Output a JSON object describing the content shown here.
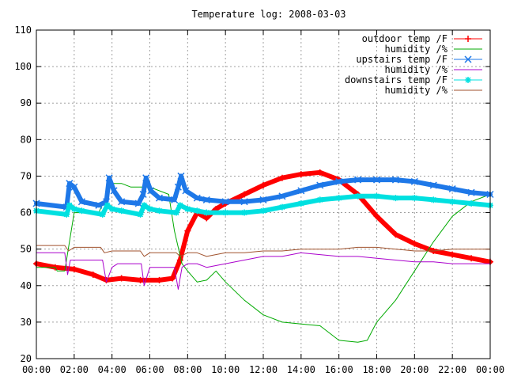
{
  "chart_data": {
    "type": "line",
    "title": "Temperature log: 2008-03-03",
    "xlabel": "",
    "ylabel": "",
    "x_ticks": [
      "00:00",
      "02:00",
      "04:00",
      "06:00",
      "08:00",
      "10:00",
      "12:00",
      "14:00",
      "16:00",
      "18:00",
      "20:00",
      "22:00",
      "00:00"
    ],
    "xlim": [
      0,
      24
    ],
    "ylim": [
      20,
      110
    ],
    "y_ticks": [
      20,
      30,
      40,
      50,
      60,
      70,
      80,
      90,
      100,
      110
    ],
    "grid": true,
    "legend_position": "top-right",
    "series": [
      {
        "name": "outdoor temp /F",
        "color": "#ff0000",
        "marker": "plus",
        "x": [
          0,
          1,
          2,
          3,
          3.7,
          4.5,
          5.5,
          6.5,
          7.2,
          7.6,
          8,
          8.5,
          9,
          9.5,
          10,
          11,
          12,
          13,
          14,
          15,
          16,
          17,
          18,
          19,
          20,
          21,
          22,
          23,
          24
        ],
        "values": [
          46,
          45,
          44.5,
          43,
          41.5,
          42,
          41.5,
          41.5,
          42,
          47,
          55,
          60,
          58.5,
          61,
          62.5,
          65,
          67.5,
          69.5,
          70.5,
          71,
          69,
          65,
          59,
          54,
          51.5,
          49.5,
          48.5,
          47.5,
          46.5
        ]
      },
      {
        "name": "humidity /%",
        "color": "#00aa00",
        "marker": "none",
        "x": [
          0,
          1,
          1.1,
          1.5,
          2,
          3.3,
          4,
          4.5,
          5,
          6,
          7,
          7.3,
          7.7,
          8,
          8.5,
          9,
          9.5,
          10,
          11,
          12,
          13,
          14,
          15,
          16,
          17,
          17.5,
          18,
          19,
          20,
          21,
          22,
          23,
          24
        ],
        "values": [
          45,
          45,
          44,
          44,
          60,
          60,
          68,
          68,
          67,
          67,
          65,
          55,
          46,
          44,
          41,
          41.5,
          44,
          41,
          36,
          32,
          30,
          29.5,
          29,
          25,
          24.5,
          25,
          30,
          36,
          44,
          52,
          59,
          63,
          65
        ]
      },
      {
        "name": "upstairs temp /F",
        "color": "#1e78e8",
        "marker": "x",
        "x": [
          0,
          1.6,
          1.75,
          2,
          2.4,
          3.3,
          3.7,
          3.85,
          4.1,
          4.5,
          5.4,
          5.65,
          5.8,
          6.05,
          6.5,
          7.3,
          7.5,
          7.65,
          7.9,
          8.5,
          9,
          10,
          11,
          12,
          13,
          14,
          15,
          16,
          17,
          18,
          19,
          20,
          21,
          22,
          23,
          24
        ],
        "values": [
          62.5,
          61.5,
          68,
          67,
          63,
          62,
          63,
          69.5,
          66,
          63,
          62.5,
          65,
          69.5,
          66,
          64,
          63.5,
          67,
          70,
          66,
          64,
          63.5,
          63,
          63,
          63.5,
          64.5,
          66,
          67.5,
          68.5,
          69,
          69,
          69,
          68.5,
          67.5,
          66.5,
          65.5,
          65
        ]
      },
      {
        "name": "humidity /%",
        "color": "#aa00cc",
        "marker": "none",
        "x": [
          0,
          1.5,
          1.65,
          1.8,
          2,
          3.5,
          3.7,
          4,
          4.3,
          5,
          5.55,
          5.7,
          6,
          6.3,
          7.3,
          7.5,
          7.7,
          8,
          8.5,
          9,
          10,
          11,
          12,
          13,
          14,
          15,
          16,
          17,
          18,
          19,
          20,
          21,
          22,
          23,
          24
        ],
        "values": [
          49,
          49,
          43,
          47,
          47,
          47,
          41,
          45,
          46,
          46,
          46,
          40,
          45,
          45,
          45,
          39,
          45,
          46,
          46,
          45,
          46,
          47,
          48,
          48,
          49,
          48.5,
          48,
          48,
          47.5,
          47,
          46.5,
          46.5,
          46,
          46,
          46
        ]
      },
      {
        "name": "downstairs temp /F",
        "color": "#00e0e0",
        "marker": "star",
        "x": [
          0,
          1.6,
          1.75,
          2,
          2.4,
          3.5,
          3.75,
          4,
          4.5,
          5.5,
          5.7,
          6,
          6.5,
          7.4,
          7.6,
          8,
          8.5,
          9,
          10,
          11,
          12,
          13,
          14,
          15,
          16,
          17,
          18,
          19,
          20,
          21,
          22,
          23,
          24
        ],
        "values": [
          60.5,
          59.5,
          62,
          61,
          60.5,
          59.5,
          62,
          61,
          60.5,
          59.5,
          62,
          61,
          60.5,
          60,
          62,
          61,
          60.5,
          60,
          60,
          60,
          60.5,
          61.5,
          62.5,
          63.5,
          64,
          64.5,
          64.5,
          64,
          64,
          63.5,
          63,
          62.5,
          62
        ]
      },
      {
        "name": "humidity /%",
        "color": "#a0522d",
        "marker": "none",
        "x": [
          0,
          1,
          1.5,
          1.7,
          2,
          3.4,
          3.6,
          4,
          5,
          5.5,
          5.7,
          6,
          7,
          7.4,
          7.6,
          8,
          8.5,
          9,
          10,
          11,
          12,
          13,
          14,
          15,
          16,
          17,
          18,
          19,
          20,
          21,
          22,
          23,
          24
        ],
        "values": [
          51,
          51,
          51,
          49.5,
          50.5,
          50.5,
          49,
          49.5,
          49.5,
          49.5,
          48,
          49,
          49,
          49,
          48,
          49,
          49,
          48,
          49,
          49,
          49.5,
          49.5,
          50,
          50,
          50,
          50.5,
          50.5,
          50,
          49.5,
          49.5,
          50,
          50,
          50
        ]
      }
    ]
  }
}
